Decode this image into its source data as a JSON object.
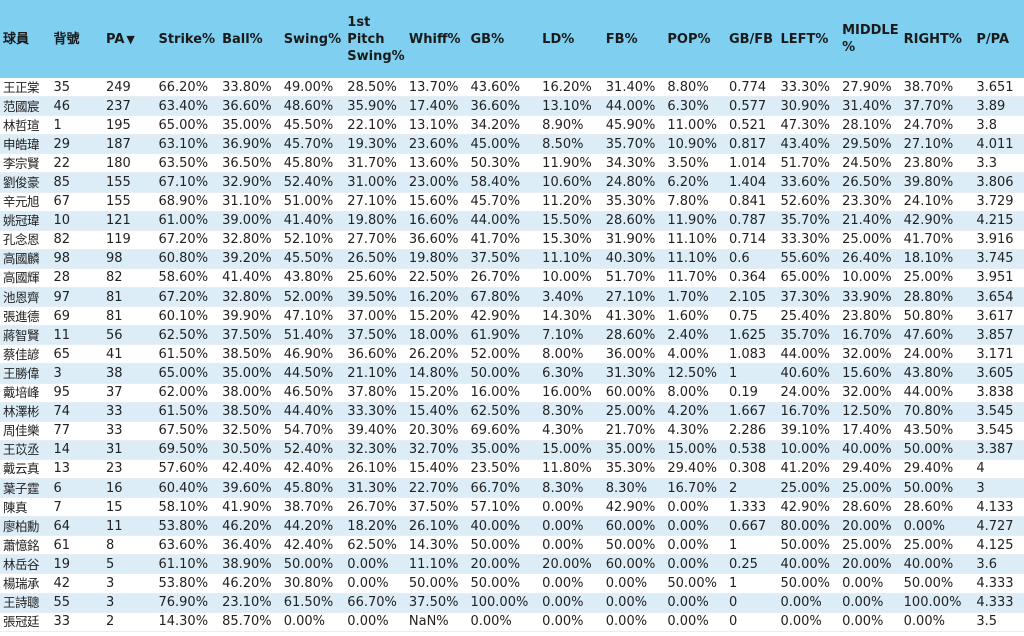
{
  "table": {
    "columns": [
      "球員",
      "背號",
      "PA",
      "Strike%",
      "Ball%",
      "Swing%",
      "1st Pitch Swing%",
      "Whiff%",
      "GB%",
      "LD%",
      "FB%",
      "POP%",
      "GB/FB",
      "LEFT%",
      "MIDDLE %",
      "RIGHT%",
      "P/PA"
    ],
    "sort_indicator": "▼",
    "rows": [
      [
        "王正棠",
        "35",
        "249",
        "66.20%",
        "33.80%",
        "49.00%",
        "28.50%",
        "13.70%",
        "43.60%",
        "16.20%",
        "31.40%",
        "8.80%",
        "0.774",
        "33.30%",
        "27.90%",
        "38.70%",
        "3.651"
      ],
      [
        "范國宸",
        "46",
        "237",
        "63.40%",
        "36.60%",
        "48.60%",
        "35.90%",
        "17.40%",
        "36.60%",
        "13.10%",
        "44.00%",
        "6.30%",
        "0.577",
        "30.90%",
        "31.40%",
        "37.70%",
        "3.89"
      ],
      [
        "林哲瑄",
        "1",
        "195",
        "65.00%",
        "35.00%",
        "45.50%",
        "22.10%",
        "13.10%",
        "34.20%",
        "8.90%",
        "45.90%",
        "11.00%",
        "0.521",
        "47.30%",
        "28.10%",
        "24.70%",
        "3.8"
      ],
      [
        "申皓瑋",
        "29",
        "187",
        "63.10%",
        "36.90%",
        "45.70%",
        "19.30%",
        "23.60%",
        "45.00%",
        "8.50%",
        "35.70%",
        "10.90%",
        "0.817",
        "43.40%",
        "29.50%",
        "27.10%",
        "4.011"
      ],
      [
        "李宗賢",
        "22",
        "180",
        "63.50%",
        "36.50%",
        "45.80%",
        "31.70%",
        "13.60%",
        "50.30%",
        "11.90%",
        "34.30%",
        "3.50%",
        "1.014",
        "51.70%",
        "24.50%",
        "23.80%",
        "3.3"
      ],
      [
        "劉俊豪",
        "85",
        "155",
        "67.10%",
        "32.90%",
        "52.40%",
        "31.00%",
        "23.00%",
        "58.40%",
        "10.60%",
        "24.80%",
        "6.20%",
        "1.404",
        "33.60%",
        "26.50%",
        "39.80%",
        "3.806"
      ],
      [
        "辛元旭",
        "67",
        "155",
        "68.90%",
        "31.10%",
        "51.00%",
        "27.10%",
        "15.60%",
        "45.70%",
        "11.20%",
        "35.30%",
        "7.80%",
        "0.841",
        "52.60%",
        "23.30%",
        "24.10%",
        "3.729"
      ],
      [
        "姚冠瑋",
        "10",
        "121",
        "61.00%",
        "39.00%",
        "41.40%",
        "19.80%",
        "16.60%",
        "44.00%",
        "15.50%",
        "28.60%",
        "11.90%",
        "0.787",
        "35.70%",
        "21.40%",
        "42.90%",
        "4.215"
      ],
      [
        "孔念恩",
        "82",
        "119",
        "67.20%",
        "32.80%",
        "52.10%",
        "27.70%",
        "36.60%",
        "41.70%",
        "15.30%",
        "31.90%",
        "11.10%",
        "0.714",
        "33.30%",
        "25.00%",
        "41.70%",
        "3.916"
      ],
      [
        "高國麟",
        "98",
        "98",
        "60.80%",
        "39.20%",
        "45.50%",
        "26.50%",
        "19.80%",
        "37.50%",
        "11.10%",
        "40.30%",
        "11.10%",
        "0.6",
        "55.60%",
        "26.40%",
        "18.10%",
        "3.745"
      ],
      [
        "高國輝",
        "28",
        "82",
        "58.60%",
        "41.40%",
        "43.80%",
        "25.60%",
        "22.50%",
        "26.70%",
        "10.00%",
        "51.70%",
        "11.70%",
        "0.364",
        "65.00%",
        "10.00%",
        "25.00%",
        "3.951"
      ],
      [
        "池恩齊",
        "97",
        "81",
        "67.20%",
        "32.80%",
        "52.00%",
        "39.50%",
        "16.20%",
        "67.80%",
        "3.40%",
        "27.10%",
        "1.70%",
        "2.105",
        "37.30%",
        "33.90%",
        "28.80%",
        "3.654"
      ],
      [
        "張進德",
        "69",
        "81",
        "60.10%",
        "39.90%",
        "47.10%",
        "37.00%",
        "15.20%",
        "42.90%",
        "14.30%",
        "41.30%",
        "1.60%",
        "0.75",
        "25.40%",
        "23.80%",
        "50.80%",
        "3.617"
      ],
      [
        "蔣智賢",
        "11",
        "56",
        "62.50%",
        "37.50%",
        "51.40%",
        "37.50%",
        "18.00%",
        "61.90%",
        "7.10%",
        "28.60%",
        "2.40%",
        "1.625",
        "35.70%",
        "16.70%",
        "47.60%",
        "3.857"
      ],
      [
        "蔡佳諺",
        "65",
        "41",
        "61.50%",
        "38.50%",
        "46.90%",
        "36.60%",
        "26.20%",
        "52.00%",
        "8.00%",
        "36.00%",
        "4.00%",
        "1.083",
        "44.00%",
        "32.00%",
        "24.00%",
        "3.171"
      ],
      [
        "王勝偉",
        "3",
        "38",
        "65.00%",
        "35.00%",
        "44.50%",
        "21.10%",
        "14.80%",
        "50.00%",
        "6.30%",
        "31.30%",
        "12.50%",
        "1",
        "40.60%",
        "15.60%",
        "43.80%",
        "3.605"
      ],
      [
        "戴培峰",
        "95",
        "37",
        "62.00%",
        "38.00%",
        "46.50%",
        "37.80%",
        "15.20%",
        "16.00%",
        "16.00%",
        "60.00%",
        "8.00%",
        "0.19",
        "24.00%",
        "32.00%",
        "44.00%",
        "3.838"
      ],
      [
        "林澤彬",
        "74",
        "33",
        "61.50%",
        "38.50%",
        "44.40%",
        "33.30%",
        "15.40%",
        "62.50%",
        "8.30%",
        "25.00%",
        "4.20%",
        "1.667",
        "16.70%",
        "12.50%",
        "70.80%",
        "3.545"
      ],
      [
        "周佳樂",
        "77",
        "33",
        "67.50%",
        "32.50%",
        "54.70%",
        "39.40%",
        "20.30%",
        "69.60%",
        "4.30%",
        "21.70%",
        "4.30%",
        "2.286",
        "39.10%",
        "17.40%",
        "43.50%",
        "3.545"
      ],
      [
        "王苡丞",
        "14",
        "31",
        "69.50%",
        "30.50%",
        "52.40%",
        "32.30%",
        "32.70%",
        "35.00%",
        "15.00%",
        "35.00%",
        "15.00%",
        "0.538",
        "10.00%",
        "40.00%",
        "50.00%",
        "3.387"
      ],
      [
        "戴云真",
        "13",
        "23",
        "57.60%",
        "42.40%",
        "42.40%",
        "26.10%",
        "15.40%",
        "23.50%",
        "11.80%",
        "35.30%",
        "29.40%",
        "0.308",
        "41.20%",
        "29.40%",
        "29.40%",
        "4"
      ],
      [
        "葉子霆",
        "6",
        "16",
        "60.40%",
        "39.60%",
        "45.80%",
        "31.30%",
        "22.70%",
        "66.70%",
        "8.30%",
        "8.30%",
        "16.70%",
        "2",
        "25.00%",
        "25.00%",
        "50.00%",
        "3"
      ],
      [
        "陳真",
        "7",
        "15",
        "58.10%",
        "41.90%",
        "38.70%",
        "26.70%",
        "37.50%",
        "57.10%",
        "0.00%",
        "42.90%",
        "0.00%",
        "1.333",
        "42.90%",
        "28.60%",
        "28.60%",
        "4.133"
      ],
      [
        "廖柏勳",
        "64",
        "11",
        "53.80%",
        "46.20%",
        "44.20%",
        "18.20%",
        "26.10%",
        "40.00%",
        "0.00%",
        "60.00%",
        "0.00%",
        "0.667",
        "80.00%",
        "20.00%",
        "0.00%",
        "4.727"
      ],
      [
        "蕭憶銘",
        "61",
        "8",
        "63.60%",
        "36.40%",
        "42.40%",
        "62.50%",
        "14.30%",
        "50.00%",
        "0.00%",
        "50.00%",
        "0.00%",
        "1",
        "50.00%",
        "25.00%",
        "25.00%",
        "4.125"
      ],
      [
        "林岳谷",
        "19",
        "5",
        "61.10%",
        "38.90%",
        "50.00%",
        "0.00%",
        "11.10%",
        "20.00%",
        "20.00%",
        "60.00%",
        "0.00%",
        "0.25",
        "40.00%",
        "20.00%",
        "40.00%",
        "3.6"
      ],
      [
        "楊瑞承",
        "42",
        "3",
        "53.80%",
        "46.20%",
        "30.80%",
        "0.00%",
        "50.00%",
        "50.00%",
        "0.00%",
        "0.00%",
        "50.00%",
        "1",
        "50.00%",
        "0.00%",
        "50.00%",
        "4.333"
      ],
      [
        "王詩聰",
        "55",
        "3",
        "76.90%",
        "23.10%",
        "61.50%",
        "66.70%",
        "37.50%",
        "100.00%",
        "0.00%",
        "0.00%",
        "0.00%",
        "0",
        "0.00%",
        "0.00%",
        "100.00%",
        "4.333"
      ],
      [
        "張冠廷",
        "33",
        "2",
        "14.30%",
        "85.70%",
        "0.00%",
        "0.00%",
        "NaN%",
        "0.00%",
        "0.00%",
        "0.00%",
        "0.00%",
        "0",
        "0.00%",
        "0.00%",
        "0.00%",
        "3.5"
      ]
    ]
  }
}
